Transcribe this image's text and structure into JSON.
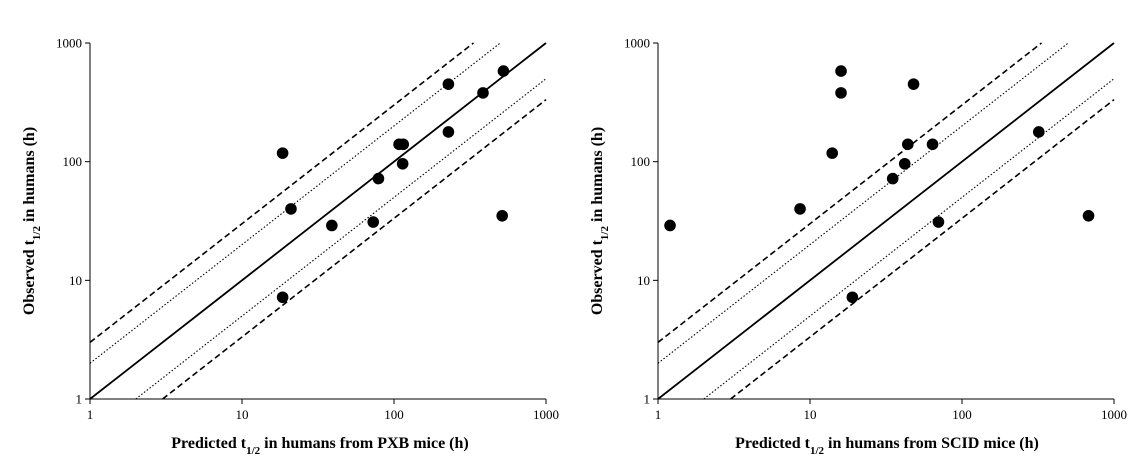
{
  "chart_data": [
    {
      "type": "scatter",
      "title": "",
      "xlabel_parts": [
        "Predicted  t",
        "1/2",
        " in humans from PXB mice   (h)"
      ],
      "ylabel_parts": [
        "Observed t",
        "1/2",
        " in humans (h)"
      ],
      "xscale": "log",
      "yscale": "log",
      "xlim": [
        1,
        1000
      ],
      "ylim": [
        1,
        1000
      ],
      "xticks": [
        "1",
        "10",
        "100",
        "1000"
      ],
      "yticks": [
        "1",
        "10",
        "100",
        "1000"
      ],
      "grid": false,
      "reference_lines": [
        {
          "fold": 1,
          "style": "solid"
        },
        {
          "fold": 2,
          "style": "dotted"
        },
        {
          "fold": 0.5,
          "style": "dotted"
        },
        {
          "fold": 3,
          "style": "dashed"
        },
        {
          "fold": 0.333,
          "style": "dashed"
        }
      ],
      "points": [
        {
          "x": 18.5,
          "y": 118
        },
        {
          "x": 18.5,
          "y": 7.2
        },
        {
          "x": 21,
          "y": 40
        },
        {
          "x": 39,
          "y": 29
        },
        {
          "x": 73,
          "y": 31
        },
        {
          "x": 79,
          "y": 72
        },
        {
          "x": 108,
          "y": 140
        },
        {
          "x": 115,
          "y": 140
        },
        {
          "x": 114,
          "y": 96
        },
        {
          "x": 228,
          "y": 450
        },
        {
          "x": 228,
          "y": 178
        },
        {
          "x": 385,
          "y": 380
        },
        {
          "x": 525,
          "y": 580
        },
        {
          "x": 515,
          "y": 35
        }
      ]
    },
    {
      "type": "scatter",
      "title": "",
      "xlabel_parts": [
        "Predicted t",
        "1/2",
        " in humans from SCID mice   (h)"
      ],
      "ylabel_parts": [
        "Observed  t",
        "1/2",
        " in humans (h)"
      ],
      "xscale": "log",
      "yscale": "log",
      "xlim": [
        1,
        1000
      ],
      "ylim": [
        1,
        1000
      ],
      "xticks": [
        "1",
        "10",
        "100",
        "1000"
      ],
      "yticks": [
        "1",
        "10",
        "100",
        "1000"
      ],
      "grid": false,
      "reference_lines": [
        {
          "fold": 1,
          "style": "solid"
        },
        {
          "fold": 2,
          "style": "dotted"
        },
        {
          "fold": 0.5,
          "style": "dotted"
        },
        {
          "fold": 3,
          "style": "dashed"
        },
        {
          "fold": 0.333,
          "style": "dashed"
        }
      ],
      "points": [
        {
          "x": 1.2,
          "y": 29
        },
        {
          "x": 8.6,
          "y": 40
        },
        {
          "x": 14,
          "y": 118
        },
        {
          "x": 16,
          "y": 580
        },
        {
          "x": 16,
          "y": 380
        },
        {
          "x": 19,
          "y": 7.2
        },
        {
          "x": 35,
          "y": 72
        },
        {
          "x": 42,
          "y": 96
        },
        {
          "x": 44,
          "y": 140
        },
        {
          "x": 48,
          "y": 450
        },
        {
          "x": 64,
          "y": 140
        },
        {
          "x": 70,
          "y": 31
        },
        {
          "x": 320,
          "y": 178
        },
        {
          "x": 680,
          "y": 35
        }
      ]
    }
  ]
}
